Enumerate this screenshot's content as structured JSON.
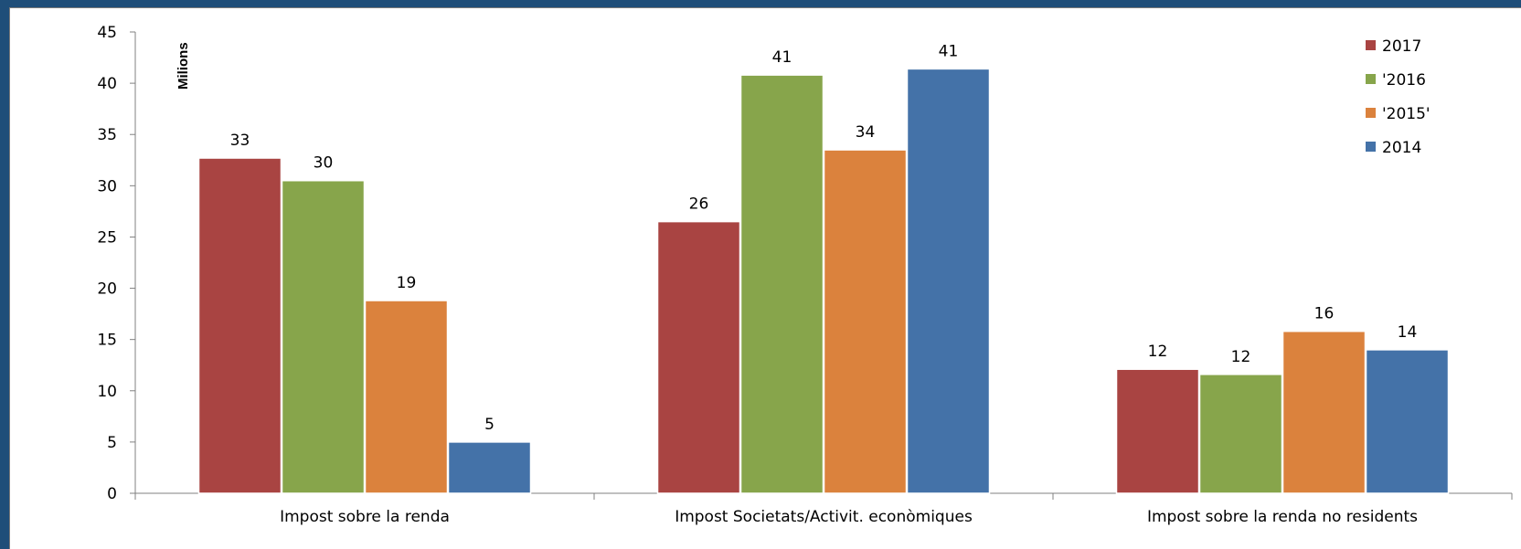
{
  "chart_data": {
    "type": "bar",
    "unit_label": "Milions",
    "categories": [
      "Impost sobre la renda",
      "Impost Societats/Activit. econòmiques",
      "Impost sobre la renda no residents"
    ],
    "series": [
      {
        "name": "2017",
        "color": "#a94442",
        "values": [
          32.7,
          26.5,
          12.1
        ],
        "labels": [
          "33",
          "26",
          "12"
        ]
      },
      {
        "name": "'2016",
        "color": "#87a54b",
        "values": [
          30.5,
          40.8,
          11.6
        ],
        "labels": [
          "30",
          "41",
          "12"
        ]
      },
      {
        "name": "'2015'",
        "color": "#db823d",
        "values": [
          18.8,
          33.5,
          15.8
        ],
        "labels": [
          "19",
          "34",
          "16"
        ]
      },
      {
        "name": "2014",
        "color": "#4472a8",
        "values": [
          5.0,
          41.4,
          14.0
        ],
        "labels": [
          "5",
          "41",
          "14"
        ]
      }
    ],
    "ylim": [
      0,
      45
    ],
    "yticks": [
      0,
      5,
      10,
      15,
      20,
      25,
      30,
      35,
      40,
      45
    ],
    "legend_position": "top-right",
    "grid": false
  }
}
